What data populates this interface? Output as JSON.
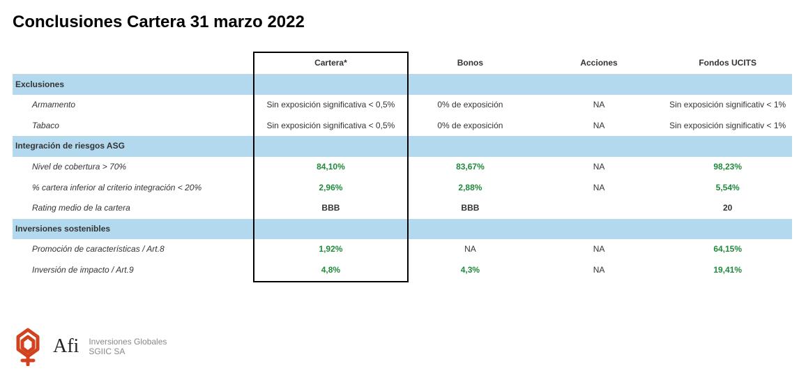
{
  "title": "Conclusiones Cartera 31 marzo 2022",
  "columns": [
    "Cartera*",
    "Bonos",
    "Acciones",
    "Fondos UCITS"
  ],
  "sections": [
    {
      "name": "Exclusiones",
      "rows": [
        {
          "label": "Armamento",
          "cells": [
            {
              "text": "Sin exposición significativa < 0,5%",
              "cls": "plain"
            },
            {
              "text": "0% de exposición",
              "cls": "plain"
            },
            {
              "text": "NA",
              "cls": "plain"
            },
            {
              "text": "Sin exposición significativ < 1%",
              "cls": "plain"
            }
          ]
        },
        {
          "label": "Tabaco",
          "cells": [
            {
              "text": "Sin exposición significativa < 0,5%",
              "cls": "plain"
            },
            {
              "text": "0% de exposición",
              "cls": "plain"
            },
            {
              "text": "NA",
              "cls": "plain"
            },
            {
              "text": "Sin exposición significativ < 1%",
              "cls": "plain"
            }
          ]
        }
      ]
    },
    {
      "name": "Integración de riesgos ASG",
      "rows": [
        {
          "label": "Nivel de cobertura > 70%",
          "cells": [
            {
              "text": "84,10%",
              "cls": "green"
            },
            {
              "text": "83,67%",
              "cls": "green"
            },
            {
              "text": "NA",
              "cls": "plain"
            },
            {
              "text": "98,23%",
              "cls": "green"
            }
          ]
        },
        {
          "label": "% cartera inferior al criterio integración < 20%",
          "cells": [
            {
              "text": "2,96%",
              "cls": "green"
            },
            {
              "text": "2,88%",
              "cls": "green"
            },
            {
              "text": "NA",
              "cls": "plain"
            },
            {
              "text": "5,54%",
              "cls": "green"
            }
          ]
        },
        {
          "label": "Rating medio de la cartera",
          "cells": [
            {
              "text": "BBB",
              "cls": "plain bold"
            },
            {
              "text": "BBB",
              "cls": "plain bold"
            },
            {
              "text": "",
              "cls": "plain"
            },
            {
              "text": "20",
              "cls": "plain bold"
            }
          ]
        }
      ]
    },
    {
      "name": "Inversiones sostenibles",
      "rows": [
        {
          "label": "Promoción de características / Art.8",
          "cells": [
            {
              "text": "1,92%",
              "cls": "green"
            },
            {
              "text": "NA",
              "cls": "plain"
            },
            {
              "text": "NA",
              "cls": "plain"
            },
            {
              "text": "64,15%",
              "cls": "green"
            }
          ]
        },
        {
          "label": "Inversión de impacto / Art.9",
          "cells": [
            {
              "text": "4,8%",
              "cls": "green"
            },
            {
              "text": "4,3%",
              "cls": "green"
            },
            {
              "text": "NA",
              "cls": "plain"
            },
            {
              "text": "19,41%",
              "cls": "green"
            }
          ]
        }
      ]
    }
  ],
  "footer": {
    "brand": "Afi",
    "tagline1": "Inversiones Globales",
    "tagline2": "SGIIC SA"
  },
  "colors": {
    "section_bg": "#b3d9ef",
    "green": "#1f8a3a",
    "text": "#333333",
    "logo": "#d1431f"
  }
}
